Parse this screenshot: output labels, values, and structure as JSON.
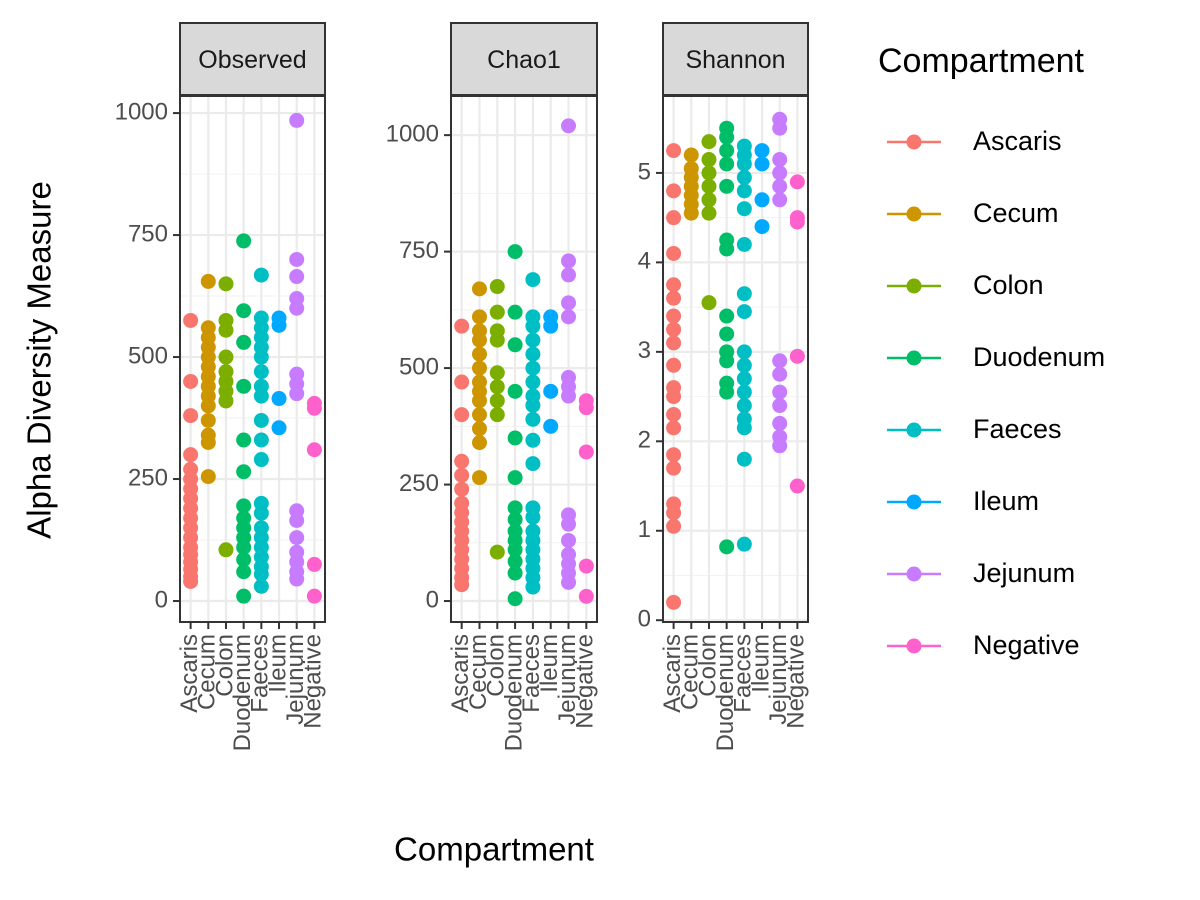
{
  "chart_data": [
    {
      "type": "scatter",
      "title": "Observed",
      "categories": [
        "Ascaris",
        "Cecum",
        "Colon",
        "Duodenum",
        "Faeces",
        "Ileum",
        "Jejunum",
        "Negative"
      ],
      "values": [
        [
          575,
          450,
          380,
          300,
          270,
          250,
          230,
          210,
          190,
          170,
          150,
          130,
          110,
          95,
          80,
          65,
          50,
          40
        ],
        [
          655,
          560,
          540,
          520,
          500,
          480,
          460,
          440,
          420,
          400,
          370,
          340,
          325,
          255
        ],
        [
          650,
          575,
          555,
          500,
          470,
          450,
          430,
          410,
          105
        ],
        [
          738,
          595,
          530,
          440,
          330,
          265,
          195,
          170,
          150,
          130,
          110,
          85,
          60,
          10
        ],
        [
          668,
          580,
          560,
          540,
          520,
          500,
          470,
          440,
          420,
          370,
          330,
          290,
          200,
          180,
          150,
          130,
          110,
          90,
          70,
          55,
          30
        ],
        [
          580,
          565,
          415,
          355
        ],
        [
          985,
          700,
          665,
          620,
          600,
          465,
          445,
          425,
          185,
          165,
          130,
          100,
          80,
          60,
          45
        ],
        [
          405,
          395,
          310,
          75,
          10
        ]
      ],
      "ylim": [
        -43,
        1035
      ],
      "yticks": [
        0,
        250,
        500,
        750,
        1000
      ],
      "grid": true
    },
    {
      "type": "scatter",
      "title": "Chao1",
      "categories": [
        "Ascaris",
        "Cecum",
        "Colon",
        "Duodenum",
        "Faeces",
        "Ileum",
        "Jejunum",
        "Negative"
      ],
      "values": [
        [
          590,
          470,
          400,
          300,
          270,
          240,
          210,
          190,
          170,
          150,
          130,
          110,
          90,
          70,
          50,
          35
        ],
        [
          670,
          610,
          580,
          560,
          530,
          500,
          470,
          450,
          430,
          400,
          370,
          340,
          265
        ],
        [
          675,
          620,
          580,
          560,
          490,
          460,
          430,
          400,
          105
        ],
        [
          750,
          620,
          550,
          450,
          350,
          265,
          200,
          175,
          150,
          130,
          110,
          85,
          60,
          5
        ],
        [
          690,
          610,
          590,
          560,
          530,
          500,
          470,
          440,
          420,
          390,
          345,
          295,
          200,
          180,
          150,
          130,
          110,
          90,
          70,
          50,
          30
        ],
        [
          610,
          590,
          450,
          375
        ],
        [
          1020,
          730,
          700,
          640,
          610,
          480,
          460,
          440,
          185,
          165,
          130,
          100,
          80,
          60,
          40
        ],
        [
          430,
          415,
          320,
          75,
          10
        ]
      ],
      "ylim": [
        -45,
        1084
      ],
      "yticks": [
        0,
        250,
        500,
        750,
        1000
      ],
      "grid": true
    },
    {
      "type": "scatter",
      "title": "Shannon",
      "categories": [
        "Ascaris",
        "Cecum",
        "Colon",
        "Duodenum",
        "Faeces",
        "Ileum",
        "Jejunum",
        "Negative"
      ],
      "values": [
        [
          5.25,
          4.8,
          4.5,
          4.1,
          3.75,
          3.6,
          3.4,
          3.25,
          3.1,
          2.85,
          2.6,
          2.5,
          2.3,
          2.15,
          1.85,
          1.7,
          1.3,
          1.2,
          1.05,
          0.2
        ],
        [
          5.2,
          5.05,
          4.95,
          4.85,
          4.75,
          4.65,
          4.55
        ],
        [
          5.35,
          5.15,
          5.0,
          4.85,
          4.7,
          4.55,
          3.55
        ],
        [
          5.5,
          5.4,
          5.25,
          5.1,
          4.85,
          4.25,
          4.15,
          3.4,
          3.2,
          3.0,
          2.9,
          2.65,
          2.55,
          0.82
        ],
        [
          5.3,
          5.2,
          5.1,
          4.95,
          4.8,
          4.6,
          4.2,
          3.65,
          3.45,
          3.0,
          2.85,
          2.7,
          2.55,
          2.4,
          2.25,
          2.15,
          1.8,
          0.85
        ],
        [
          5.25,
          5.1,
          4.7,
          4.4
        ],
        [
          5.6,
          5.5,
          5.15,
          5.0,
          4.85,
          4.7,
          2.9,
          2.75,
          2.55,
          2.4,
          2.2,
          2.05,
          1.95
        ],
        [
          4.9,
          4.5,
          4.45,
          2.95,
          1.5
        ]
      ],
      "ylim": [
        -0.02,
        5.86
      ],
      "yticks": [
        0,
        1,
        2,
        3,
        4,
        5
      ],
      "grid": true
    }
  ],
  "x_label": "Compartment",
  "y_label": "Alpha Diversity Measure",
  "legend": {
    "title": "Compartment",
    "entries": [
      {
        "name": "Ascaris",
        "color": "#f8766d"
      },
      {
        "name": "Cecum",
        "color": "#cd9600"
      },
      {
        "name": "Colon",
        "color": "#7cae00"
      },
      {
        "name": "Duodenum",
        "color": "#00be67"
      },
      {
        "name": "Faeces",
        "color": "#00bfc4"
      },
      {
        "name": "Ileum",
        "color": "#00a9ff"
      },
      {
        "name": "Jejunum",
        "color": "#c77cff"
      },
      {
        "name": "Negative",
        "color": "#ff61cc"
      }
    ]
  }
}
